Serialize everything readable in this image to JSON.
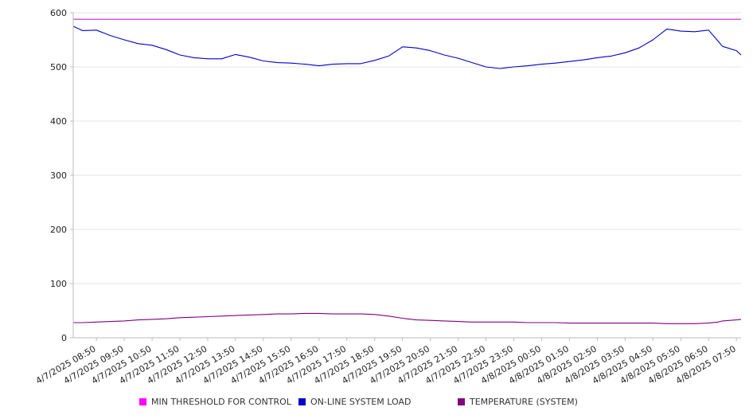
{
  "chart_data": {
    "type": "line",
    "title": "",
    "xlabel": "",
    "ylabel": "",
    "ylim": [
      0,
      600
    ],
    "y_ticks": [
      "0",
      "100",
      "200",
      "300",
      "400",
      "500",
      "600"
    ],
    "grid": "horizontal",
    "legend_position": "bottom",
    "x_tick_labels": [
      "4/7/2025 08:50",
      "4/7/2025 09:50",
      "4/7/2025 10:50",
      "4/7/2025 11:50",
      "4/7/2025 12:50",
      "4/7/2025 13:50",
      "4/7/2025 14:50",
      "4/7/2025 15:50",
      "4/7/2025 16:50",
      "4/7/2025 17:50",
      "4/7/2025 18:50",
      "4/7/2025 19:50",
      "4/7/2025 20:50",
      "4/7/2025 21:50",
      "4/7/2025 22:50",
      "4/7/2025 23:50",
      "4/8/2025 00:50",
      "4/8/2025 01:50",
      "4/8/2025 02:50",
      "4/8/2025 03:50",
      "4/8/2025 04:50",
      "4/8/2025 05:50",
      "4/8/2025 06:50",
      "4/8/2025 07:50"
    ],
    "x": [
      "4/7/2025 08:00",
      "4/7/2025 08:20",
      "4/7/2025 08:50",
      "4/7/2025 09:20",
      "4/7/2025 09:50",
      "4/7/2025 10:20",
      "4/7/2025 10:50",
      "4/7/2025 11:20",
      "4/7/2025 11:50",
      "4/7/2025 12:20",
      "4/7/2025 12:50",
      "4/7/2025 13:20",
      "4/7/2025 13:50",
      "4/7/2025 14:20",
      "4/7/2025 14:50",
      "4/7/2025 15:20",
      "4/7/2025 15:50",
      "4/7/2025 16:20",
      "4/7/2025 16:50",
      "4/7/2025 17:20",
      "4/7/2025 17:50",
      "4/7/2025 18:20",
      "4/7/2025 18:50",
      "4/7/2025 19:20",
      "4/7/2025 19:50",
      "4/7/2025 20:20",
      "4/7/2025 20:50",
      "4/7/2025 21:20",
      "4/7/2025 21:50",
      "4/7/2025 22:20",
      "4/7/2025 22:50",
      "4/7/2025 23:20",
      "4/7/2025 23:50",
      "4/8/2025 00:20",
      "4/8/2025 00:50",
      "4/8/2025 01:20",
      "4/8/2025 01:50",
      "4/8/2025 02:20",
      "4/8/2025 02:50",
      "4/8/2025 03:20",
      "4/8/2025 03:50",
      "4/8/2025 04:20",
      "4/8/2025 04:50",
      "4/8/2025 05:20",
      "4/8/2025 05:50",
      "4/8/2025 06:20",
      "4/8/2025 06:50",
      "4/8/2025 07:10",
      "4/8/2025 07:20",
      "4/8/2025 07:50",
      "4/8/2025 08:00"
    ],
    "series": [
      {
        "name": "MIN THRESHOLD FOR CONTROL",
        "color": "#cc22cc",
        "values": [
          588,
          588,
          588,
          588,
          588,
          588,
          588,
          588,
          588,
          588,
          588,
          588,
          588,
          588,
          588,
          588,
          588,
          588,
          588,
          588,
          588,
          588,
          588,
          588,
          588,
          588,
          588,
          588,
          588,
          588,
          588,
          588,
          588,
          588,
          588,
          588,
          588,
          588,
          588,
          588,
          588,
          588,
          588,
          588,
          588,
          588,
          588,
          588,
          588,
          588,
          588
        ]
      },
      {
        "name": "ON-LINE SYSTEM LOAD",
        "color": "#0000cc",
        "values": [
          575,
          567,
          568,
          558,
          550,
          543,
          540,
          532,
          522,
          517,
          515,
          515,
          523,
          518,
          511,
          508,
          507,
          505,
          502,
          505,
          506,
          506,
          512,
          520,
          537,
          535,
          530,
          522,
          516,
          508,
          500,
          497,
          500,
          502,
          505,
          507,
          510,
          513,
          517,
          520,
          526,
          535,
          550,
          570,
          566,
          565,
          568,
          548,
          538,
          530,
          522
        ]
      },
      {
        "name": "TEMPERATURE (SYSTEM)",
        "color": "#800080",
        "values": [
          28,
          28,
          29,
          30,
          31,
          33,
          34,
          35,
          37,
          38,
          39,
          40,
          41,
          42,
          43,
          44,
          44,
          45,
          45,
          44,
          44,
          44,
          43,
          40,
          36,
          33,
          32,
          31,
          30,
          29,
          29,
          29,
          29,
          28,
          28,
          28,
          27,
          27,
          27,
          27,
          27,
          27,
          27,
          26,
          26,
          26,
          27,
          29,
          31,
          33,
          34
        ]
      }
    ]
  }
}
